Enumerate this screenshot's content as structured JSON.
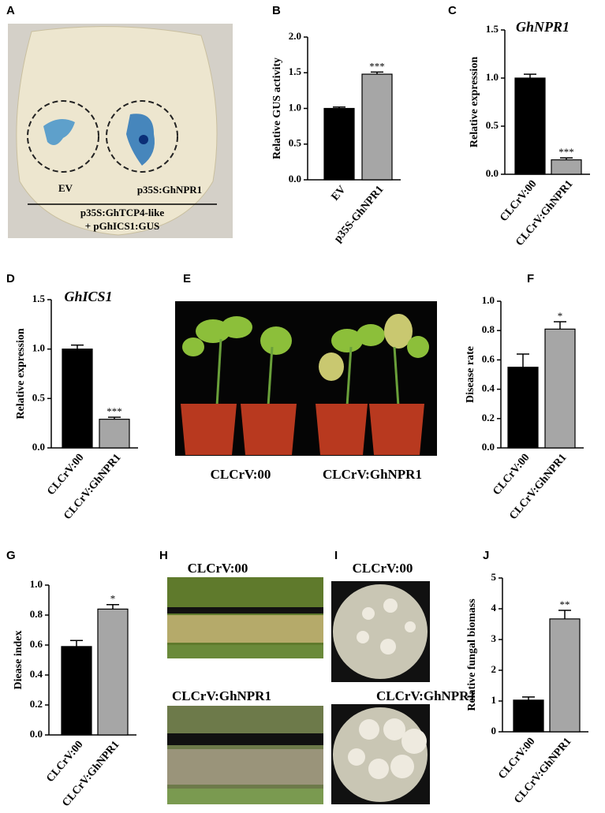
{
  "panels": [
    "A",
    "B",
    "C",
    "D",
    "E",
    "F",
    "G",
    "H",
    "I",
    "J"
  ],
  "panel_a": {
    "labels": [
      "EV",
      "p35S:GhNPR1"
    ],
    "construct": [
      "p35S:GhTCP4-like",
      "+ pGhICS1:GUS"
    ]
  },
  "panel_e": {
    "labels": [
      "CLCrV:00",
      "CLCrV:GhNPR1"
    ]
  },
  "panel_h": {
    "labels": [
      "CLCrV:00",
      "CLCrV:GhNPR1"
    ]
  },
  "panel_i": {
    "labels": [
      "CLCrV:00",
      "CLCrV:GhNPR1"
    ]
  },
  "chart_data": [
    {
      "type": "bar",
      "ylabel": "Relative GUS activity",
      "categories": [
        "EV",
        "p35S-GhNPR1"
      ],
      "values": [
        1.0,
        1.48
      ],
      "errors": [
        0.02,
        0.03
      ],
      "annotation": "***",
      "colors": [
        "#000000",
        "#a6a6a6"
      ],
      "ylim": [
        0,
        2
      ],
      "yticks": [
        {
          "value": 0,
          "label": "0.0"
        },
        0.5,
        {
          "value": 1,
          "label": "1.0"
        },
        1.5,
        {
          "value": 2,
          "label": "2.0"
        }
      ]
    },
    {
      "type": "bar",
      "title": "GhNPR1",
      "ylabel": "Relative expression",
      "categories": [
        "CLCrV:00",
        "CLCrV:GhNPR1"
      ],
      "values": [
        1.0,
        0.15
      ],
      "errors": [
        0.04,
        0.02
      ],
      "annotation": "***",
      "colors": [
        "#000000",
        "#a6a6a6"
      ],
      "ylim": [
        0,
        1.5
      ],
      "yticks": [
        {
          "value": 0,
          "label": "0.0"
        },
        0.5,
        {
          "value": 1,
          "label": "1.0"
        },
        1.5
      ]
    },
    {
      "type": "bar",
      "title": "GhICS1",
      "ylabel": "Relative expression",
      "categories": [
        "CLCrV:00",
        "CLCrV:GhNPR1"
      ],
      "values": [
        1.0,
        0.29
      ],
      "errors": [
        0.04,
        0.02
      ],
      "annotation": "***",
      "colors": [
        "#000000",
        "#a6a6a6"
      ],
      "ylim": [
        0,
        1.5
      ],
      "yticks": [
        {
          "value": 0,
          "label": "0.0"
        },
        0.5,
        {
          "value": 1,
          "label": "1.0"
        },
        1.5
      ]
    },
    {
      "type": "bar",
      "ylabel": "Disease rate",
      "categories": [
        "CLCrV:00",
        "CLCrV:GhNPR1"
      ],
      "values": [
        0.55,
        0.81
      ],
      "errors": [
        0.09,
        0.05
      ],
      "annotation": "*",
      "colors": [
        "#000000",
        "#a6a6a6"
      ],
      "ylim": [
        0,
        1
      ],
      "yticks": [
        {
          "value": 0,
          "label": "0.0"
        },
        0.2,
        0.4,
        0.6,
        0.8,
        {
          "value": 1,
          "label": "1.0"
        }
      ]
    },
    {
      "type": "bar",
      "ylabel": "Diease index",
      "categories": [
        "CLCrV:00",
        "CLCrV:GhNPR1"
      ],
      "values": [
        0.59,
        0.84
      ],
      "errors": [
        0.04,
        0.03
      ],
      "annotation": "*",
      "colors": [
        "#000000",
        "#a6a6a6"
      ],
      "ylim": [
        0,
        1
      ],
      "yticks": [
        {
          "value": 0,
          "label": "0.0"
        },
        0.2,
        0.4,
        0.6,
        0.8,
        {
          "value": 1,
          "label": "1.0"
        }
      ]
    },
    {
      "type": "bar",
      "ylabel": "Relative fungal biomass",
      "categories": [
        "CLCrV:00",
        "CLCrV:GhNPR1"
      ],
      "values": [
        1.03,
        3.67
      ],
      "errors": [
        0.1,
        0.28
      ],
      "annotation": "**",
      "colors": [
        "#000000",
        "#a6a6a6"
      ],
      "ylim": [
        0,
        5
      ],
      "yticks": [
        0,
        1,
        2,
        3,
        4,
        5
      ]
    }
  ]
}
